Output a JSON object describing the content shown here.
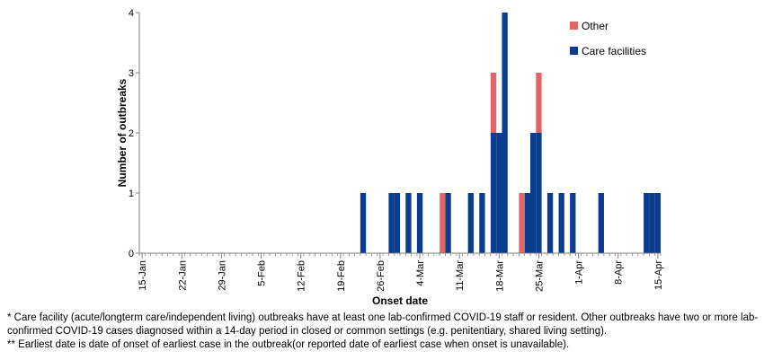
{
  "chart_data": {
    "type": "bar",
    "stacked": true,
    "xlabel": "Onset date",
    "ylabel": "Number of outbreaks",
    "ylim": [
      0,
      4
    ],
    "yticks": [
      0,
      1,
      2,
      3,
      4
    ],
    "x_start": "2020-01-15",
    "x_end": "2020-04-16",
    "xticks": [
      "15-Jan",
      "22-Jan",
      "29-Jan",
      "5-Feb",
      "12-Feb",
      "19-Feb",
      "26-Feb",
      "4-Mar",
      "11-Mar",
      "18-Mar",
      "25-Mar",
      "1-Apr",
      "8-Apr",
      "15-Apr"
    ],
    "legend_position": "top-right",
    "series": [
      {
        "name": "Care facilities",
        "color": "#0a3d8f",
        "points": [
          {
            "x": "2020-02-23",
            "y": 1
          },
          {
            "x": "2020-02-28",
            "y": 1
          },
          {
            "x": "2020-02-29",
            "y": 1
          },
          {
            "x": "2020-03-02",
            "y": 1
          },
          {
            "x": "2020-03-04",
            "y": 1
          },
          {
            "x": "2020-03-09",
            "y": 1
          },
          {
            "x": "2020-03-13",
            "y": 1
          },
          {
            "x": "2020-03-15",
            "y": 1
          },
          {
            "x": "2020-03-17",
            "y": 2
          },
          {
            "x": "2020-03-18",
            "y": 2
          },
          {
            "x": "2020-03-19",
            "y": 4
          },
          {
            "x": "2020-03-23",
            "y": 1
          },
          {
            "x": "2020-03-24",
            "y": 2
          },
          {
            "x": "2020-03-25",
            "y": 2
          },
          {
            "x": "2020-03-27",
            "y": 1
          },
          {
            "x": "2020-03-29",
            "y": 1
          },
          {
            "x": "2020-03-31",
            "y": 1
          },
          {
            "x": "2020-04-05",
            "y": 1
          },
          {
            "x": "2020-04-13",
            "y": 1
          },
          {
            "x": "2020-04-14",
            "y": 1
          },
          {
            "x": "2020-04-15",
            "y": 1
          }
        ]
      },
      {
        "name": "Other",
        "color": "#e06666",
        "points": [
          {
            "x": "2020-03-08",
            "y": 1
          },
          {
            "x": "2020-03-17",
            "y": 1
          },
          {
            "x": "2020-03-22",
            "y": 1
          },
          {
            "x": "2020-03-25",
            "y": 1
          }
        ]
      }
    ]
  },
  "footnotes": [
    "* Care facility (acute/longterm care/independent living) outbreaks have at least one lab-confirmed COVID-19 staff or resident. Other outbreaks have two or more lab-confirmed COVID-19 cases diagnosed within a 14-day period in closed or common settings (e.g. penitentiary, shared living setting).",
    "** Earliest date is date of onset of earliest case in the outbreak(or reported date of earliest case when onset is unavailable)."
  ]
}
